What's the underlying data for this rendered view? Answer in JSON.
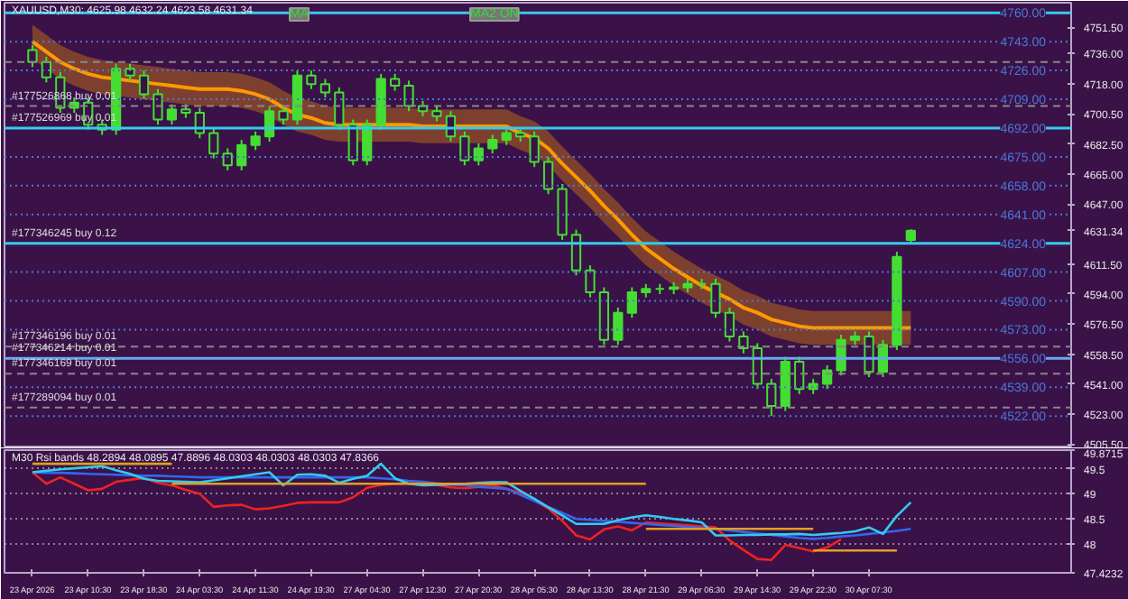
{
  "chart_data": [
    {
      "type": "candlestick",
      "title": "XAUUSD,M30: 4625.98 4632.24 4623.58 4631.34",
      "color": "#44dd33",
      "categories": [
        null,
        null,
        null,
        null,
        null,
        null,
        null,
        null,
        null,
        null,
        null,
        null,
        null,
        null,
        null,
        null,
        null,
        null,
        null,
        null,
        null,
        null,
        null,
        null,
        null,
        null,
        null,
        null,
        null,
        null,
        null,
        null,
        null,
        null,
        null,
        null,
        null,
        null,
        null,
        null,
        null,
        null,
        null,
        null,
        null,
        null,
        null,
        null,
        null,
        null,
        null,
        null,
        null,
        null,
        null,
        null,
        null,
        null,
        null,
        null,
        null,
        null,
        null,
        null
      ],
      "ohlc": [
        [
          4738,
          4741,
          4728,
          4731
        ],
        [
          4731,
          4734,
          4719,
          4722
        ],
        [
          4722,
          4725,
          4701,
          4704
        ],
        [
          4704,
          4710,
          4701,
          4707
        ],
        [
          4707,
          4710,
          4691,
          4694
        ],
        [
          4694,
          4697,
          4688,
          4691
        ],
        [
          4691,
          4730,
          4688,
          4727
        ],
        [
          4727,
          4730,
          4720,
          4723
        ],
        [
          4723,
          4726,
          4709,
          4712
        ],
        [
          4712,
          4715,
          4694,
          4697
        ],
        [
          4697,
          4706,
          4694,
          4703
        ],
        [
          4703,
          4706,
          4698,
          4701
        ],
        [
          4701,
          4704,
          4686,
          4689
        ],
        [
          4689,
          4692,
          4674,
          4677
        ],
        [
          4677,
          4680,
          4667,
          4670
        ],
        [
          4670,
          4685,
          4667,
          4682
        ],
        [
          4682,
          4690,
          4679,
          4687
        ],
        [
          4687,
          4705,
          4684,
          4702
        ],
        [
          4702,
          4705,
          4694,
          4697
        ],
        [
          4697,
          4726,
          4694,
          4723
        ],
        [
          4723,
          4726,
          4715,
          4718
        ],
        [
          4718,
          4721,
          4710,
          4713
        ],
        [
          4713,
          4716,
          4691,
          4694
        ],
        [
          4694,
          4697,
          4670,
          4673
        ],
        [
          4673,
          4697,
          4670,
          4694
        ],
        [
          4694,
          4724,
          4691,
          4721
        ],
        [
          4721,
          4724,
          4714,
          4717
        ],
        [
          4717,
          4720,
          4702,
          4705
        ],
        [
          4705,
          4708,
          4699,
          4702
        ],
        [
          4702,
          4705,
          4696,
          4699
        ],
        [
          4699,
          4702,
          4684,
          4687
        ],
        [
          4687,
          4690,
          4670,
          4673
        ],
        [
          4673,
          4683,
          4670,
          4680
        ],
        [
          4680,
          4688,
          4677,
          4685
        ],
        [
          4685,
          4692,
          4682,
          4689
        ],
        [
          4689,
          4692,
          4684,
          4687
        ],
        [
          4687,
          4690,
          4669,
          4672
        ],
        [
          4672,
          4675,
          4653,
          4656
        ],
        [
          4656,
          4659,
          4626,
          4629
        ],
        [
          4629,
          4632,
          4605,
          4608
        ],
        [
          4608,
          4611,
          4592,
          4595
        ],
        [
          4595,
          4598,
          4564,
          4567
        ],
        [
          4567,
          4586,
          4564,
          4583
        ],
        [
          4583,
          4598,
          4580,
          4595
        ],
        [
          4595,
          4600,
          4592,
          4597
        ],
        [
          4597,
          4600,
          4594,
          4597
        ],
        [
          4597,
          4601,
          4594,
          4598
        ],
        [
          4598,
          4603,
          4595,
          4600
        ],
        [
          4600,
          4603,
          4597,
          4600
        ],
        [
          4600,
          4603,
          4580,
          4583
        ],
        [
          4583,
          4586,
          4566,
          4569
        ],
        [
          4569,
          4572,
          4559,
          4562
        ],
        [
          4562,
          4565,
          4538,
          4541
        ],
        [
          4541,
          4544,
          4522,
          4528
        ],
        [
          4528,
          4557,
          4525,
          4554
        ],
        [
          4554,
          4557,
          4535,
          4538
        ],
        [
          4538,
          4544,
          4535,
          4541
        ],
        [
          4541,
          4552,
          4538,
          4549
        ],
        [
          4549,
          4570,
          4546,
          4567
        ],
        [
          4567,
          4572,
          4564,
          4569
        ],
        [
          4569,
          4572,
          4545,
          4548
        ],
        [
          4548,
          4567,
          4545,
          4564
        ],
        [
          4564,
          4619,
          4561,
          4616
        ],
        [
          4625.98,
          4632.24,
          4623.58,
          4631.34
        ]
      ],
      "series": [
        {
          "type": "line",
          "color": "#ff9900",
          "values": [
            4743,
            4737,
            4731,
            4727,
            4724,
            4722,
            4721,
            4720,
            4719,
            4718,
            4717,
            4716,
            4715,
            4715,
            4715,
            4714,
            4712,
            4709,
            4704,
            4700,
            4698,
            4695,
            4694,
            4694,
            4694,
            4694,
            4694,
            4694,
            4693,
            4693,
            4693,
            4693,
            4693,
            4693,
            4693,
            4689,
            4686,
            4680,
            4671,
            4663,
            4655,
            4646,
            4638,
            4629,
            4621,
            4615,
            4609,
            4604,
            4599,
            4595,
            4591,
            4586,
            4583,
            4579,
            4577,
            4575,
            4574,
            4574,
            4574,
            4574,
            4574,
            4574,
            4574,
            4574
          ],
          "lower": [
            4733,
            4727,
            4721,
            4717,
            4714,
            4712,
            4711,
            4710,
            4709,
            4708,
            4707,
            4706,
            4705,
            4705,
            4705,
            4704,
            4702,
            4699,
            4694,
            4690,
            4688,
            4685,
            4684,
            4684,
            4684,
            4684,
            4684,
            4684,
            4683,
            4683,
            4683,
            4683,
            4683,
            4683,
            4683,
            4679,
            4676,
            4670,
            4661,
            4653,
            4645,
            4636,
            4628,
            4619,
            4611,
            4605,
            4599,
            4594,
            4589,
            4585,
            4581,
            4576,
            4573,
            4569,
            4567,
            4565,
            4564,
            4564,
            4564,
            4564,
            4564,
            4564,
            4564,
            4564
          ],
          "upper": [
            4753,
            4747,
            4741,
            4737,
            4734,
            4732,
            4731,
            4730,
            4729,
            4728,
            4727,
            4726,
            4725,
            4725,
            4725,
            4724,
            4722,
            4719,
            4714,
            4710,
            4708,
            4705,
            4704,
            4704,
            4704,
            4704,
            4704,
            4704,
            4703,
            4703,
            4703,
            4703,
            4703,
            4703,
            4703,
            4699,
            4696,
            4690,
            4681,
            4673,
            4665,
            4656,
            4648,
            4639,
            4631,
            4625,
            4619,
            4614,
            4609,
            4605,
            4601,
            4596,
            4593,
            4589,
            4587,
            4585,
            4584,
            4584,
            4584,
            4584,
            4584,
            4584,
            4584,
            4584
          ]
        }
      ],
      "ref_lines": [
        {
          "axis": "y",
          "value": 4743,
          "label": "4743.00",
          "color": "#4a78d8",
          "line_style": "dotted"
        },
        {
          "axis": "y",
          "value": 4726,
          "label": "4726.00",
          "color": "#4a78d8",
          "line_style": "dotted"
        },
        {
          "axis": "y",
          "value": 4709,
          "label": "4709.00",
          "color": "#4a78d8",
          "line_style": "dotted"
        },
        {
          "axis": "y",
          "value": 4675,
          "label": "4675.00",
          "color": "#4a78d8",
          "line_style": "dotted"
        },
        {
          "axis": "y",
          "value": 4658,
          "label": "4658.00",
          "color": "#4a78d8",
          "line_style": "dotted"
        },
        {
          "axis": "y",
          "value": 4641,
          "label": "4641.00",
          "color": "#4a78d8",
          "line_style": "dotted"
        },
        {
          "axis": "y",
          "value": 4607,
          "label": "4607.00",
          "color": "#4a78d8",
          "line_style": "dotted"
        },
        {
          "axis": "y",
          "value": 4590,
          "label": "4590.00",
          "color": "#4a78d8",
          "line_style": "dotted"
        },
        {
          "axis": "y",
          "value": 4573,
          "label": "4573.00",
          "color": "#4a78d8",
          "line_style": "dotted"
        },
        {
          "axis": "y",
          "value": 4539,
          "label": "4539.00",
          "color": "#4a78d8",
          "line_style": "dotted"
        },
        {
          "axis": "y",
          "value": 4522,
          "label": "4522.00",
          "color": "#4a78d8",
          "line_style": "dotted"
        },
        {
          "axis": "y",
          "value": 4760,
          "label": null,
          "color": "#33ccee",
          "line_style": "solid"
        },
        {
          "axis": "y",
          "value": 4731,
          "label": null,
          "color": "#888888",
          "line_style": "dashed"
        },
        {
          "axis": "y",
          "value": 4705,
          "label": "#177526868 buy 0.01",
          "color": "#888888",
          "line_style": "dashed"
        },
        {
          "axis": "y",
          "value": 4692,
          "label": "#177526969 buy 0.01",
          "color": "#33ccee",
          "line_style": "solid"
        },
        {
          "axis": "y",
          "value": 4624,
          "label": "#177346245 buy 0.12",
          "color": "#33ccee",
          "line_style": "solid"
        },
        {
          "axis": "y",
          "value": 4563,
          "label": "#177346196 buy 0.01",
          "color": "#888888",
          "line_style": "dashed"
        },
        {
          "axis": "y",
          "value": 4556,
          "label": "#177346214 buy 0.01",
          "color": "#66aaee",
          "line_style": "solid"
        },
        {
          "axis": "y",
          "value": 4547,
          "label": "#177346169 buy 0.01",
          "color": "#888888",
          "line_style": "dashed"
        },
        {
          "axis": "y",
          "value": 4527,
          "label": "#177289094 buy 0.01",
          "color": "#888888",
          "line_style": "dashed"
        }
      ],
      "annotations": [
        "MA",
        "MA2 ON",
        {
          "text": "4760.00",
          "y": 4760
        },
        {
          "text": "4692.00",
          "y": 4692
        },
        {
          "text": "4624.00",
          "y": 4624
        },
        {
          "text": "4556.00",
          "y": 4556
        }
      ],
      "ylim": [
        4504,
        4766
      ],
      "yticks": [
        {
          "value": 4751.5,
          "label": "4751.50"
        },
        {
          "value": 4736,
          "label": "4736.00"
        },
        {
          "value": 4718,
          "label": "4718.00"
        },
        {
          "value": 4700.5,
          "label": "4700.50"
        },
        {
          "value": 4682.5,
          "label": "4682.50"
        },
        {
          "value": 4665,
          "label": "4665.00"
        },
        {
          "value": 4647,
          "label": "4647.00"
        },
        {
          "value": 4631.34,
          "label": "4631.34"
        },
        {
          "value": 4611.5,
          "label": "4611.50"
        },
        {
          "value": 4594,
          "label": "4594.00"
        },
        {
          "value": 4576.5,
          "label": "4576.50"
        },
        {
          "value": 4558.5,
          "label": "4558.50"
        },
        {
          "value": 4541,
          "label": "4541.00"
        },
        {
          "value": 4523,
          "label": "4523.00"
        },
        {
          "value": 4505.5,
          "label": "4505.50"
        }
      ],
      "tick_labels": "y"
    },
    {
      "type": "line",
      "title": "M30 Rsi bands 48.2894 48.0895 47.8896 48.0303 48.0303 48.0303 47.8366",
      "categories": [
        "23 Apr 2026",
        null,
        null,
        null,
        "23 Apr 10:30",
        null,
        null,
        null,
        "23 Apr 18:30",
        null,
        null,
        null,
        "24 Apr 03:30",
        null,
        null,
        null,
        "24 Apr 11:30",
        null,
        null,
        null,
        "24 Apr 19:30",
        null,
        null,
        null,
        "27 Apr 04:30",
        null,
        null,
        null,
        "27 Apr 12:30",
        null,
        null,
        null,
        "27 Apr 20:30",
        null,
        null,
        null,
        "28 Apr 05:30",
        null,
        null,
        null,
        "28 Apr 13:30",
        null,
        null,
        null,
        "28 Apr 21:30",
        null,
        null,
        null,
        "29 Apr 06:30",
        null,
        null,
        null,
        "29 Apr 14:30",
        null,
        null,
        null,
        "29 Apr 22:30",
        null,
        null,
        null,
        "30 Apr 07:30",
        null,
        null,
        null
      ],
      "series": [
        {
          "color": "#ee2222",
          "values": [
            49.43,
            49.2,
            49.33,
            49.2,
            49.07,
            49.1,
            49.24,
            49.28,
            49.32,
            49.22,
            49.17,
            49.08,
            49.0,
            48.74,
            48.77,
            48.78,
            48.69,
            48.71,
            48.76,
            48.82,
            48.83,
            48.83,
            48.83,
            48.93,
            49.12,
            49.18,
            49.2,
            49.21,
            49.23,
            49.18,
            49.13,
            49.11,
            49.14,
            49.17,
            49.1,
            49.02,
            48.87,
            48.71,
            48.46,
            48.17,
            48.09,
            48.29,
            48.35,
            48.27,
            48.43,
            48.41,
            48.39,
            48.37,
            48.35,
            48.33,
            48.07,
            47.88,
            47.7,
            47.68,
            47.98,
            47.92,
            47.85,
            47.93,
            48.09,
            null,
            null,
            null,
            null,
            null
          ]
        },
        {
          "color": "#3366ee",
          "values": [
            49.43,
            49.42,
            49.42,
            49.41,
            49.4,
            49.39,
            49.38,
            49.37,
            49.36,
            49.36,
            49.35,
            49.34,
            49.33,
            49.33,
            49.33,
            49.33,
            49.33,
            49.33,
            49.33,
            49.33,
            49.33,
            49.33,
            49.33,
            49.33,
            49.33,
            49.31,
            49.29,
            49.26,
            49.24,
            49.21,
            49.19,
            49.17,
            49.14,
            49.12,
            49.1,
            48.98,
            48.86,
            48.74,
            48.62,
            48.5,
            48.48,
            48.46,
            48.44,
            48.42,
            48.4,
            48.38,
            48.36,
            48.34,
            48.32,
            48.3,
            48.27,
            48.24,
            48.21,
            48.18,
            48.15,
            48.12,
            48.1,
            48.12,
            48.15,
            48.17,
            48.2,
            48.23,
            48.26,
            48.3
          ]
        },
        {
          "color": "#33ccee",
          "values": [
            49.43,
            49.46,
            49.49,
            49.51,
            49.53,
            49.55,
            49.47,
            49.4,
            49.3,
            49.26,
            49.25,
            49.24,
            49.23,
            49.27,
            49.31,
            49.35,
            49.39,
            49.43,
            49.17,
            49.38,
            49.39,
            49.36,
            49.22,
            49.3,
            49.36,
            49.6,
            49.31,
            49.2,
            49.17,
            49.18,
            49.19,
            49.2,
            49.22,
            49.23,
            49.23,
            49.06,
            48.9,
            48.73,
            48.57,
            48.4,
            48.4,
            48.4,
            48.47,
            48.53,
            48.57,
            48.54,
            48.5,
            48.47,
            48.43,
            48.17,
            48.17,
            48.18,
            48.18,
            48.19,
            48.19,
            48.2,
            48.18,
            48.2,
            48.22,
            48.25,
            48.33,
            48.2,
            48.56,
            48.83
          ]
        },
        {
          "color": "#e0a020",
          "values": [
            49.6,
            49.6,
            49.6,
            49.6,
            49.6,
            49.6,
            49.6,
            49.6,
            49.6,
            49.6,
            49.6,
            null,
            null,
            null,
            null,
            null,
            null,
            null,
            null,
            null,
            null,
            null,
            null,
            null,
            null,
            null,
            null,
            null,
            null,
            null,
            null,
            null,
            null,
            null,
            null,
            null,
            null,
            null,
            null,
            null,
            null,
            null,
            null,
            null,
            null,
            null,
            null,
            null,
            null,
            null,
            null,
            null,
            null,
            null,
            null,
            null,
            null,
            null,
            null,
            null,
            null,
            null,
            null,
            null
          ]
        },
        {
          "color": "#e0a020",
          "values": [
            null,
            null,
            null,
            null,
            null,
            null,
            null,
            null,
            null,
            null,
            49.2,
            49.2,
            49.2,
            49.2,
            49.2,
            49.2,
            49.2,
            49.2,
            49.2,
            49.2,
            49.2,
            49.2,
            49.2,
            49.2,
            49.2,
            49.2,
            49.2,
            49.2,
            49.2,
            49.2,
            49.2,
            49.2,
            49.2,
            49.2,
            49.2,
            49.2,
            49.2,
            49.2,
            49.2,
            49.2,
            49.2,
            49.2,
            49.2,
            49.2,
            49.2,
            null,
            null,
            null,
            null,
            null,
            null,
            null,
            null,
            null,
            null,
            null,
            null,
            null,
            null,
            null,
            null,
            null,
            null,
            null
          ]
        },
        {
          "color": "#e0a020",
          "values": [
            null,
            null,
            null,
            null,
            null,
            null,
            null,
            null,
            null,
            null,
            null,
            null,
            null,
            null,
            null,
            null,
            null,
            null,
            null,
            null,
            null,
            null,
            null,
            null,
            null,
            null,
            null,
            null,
            null,
            null,
            null,
            null,
            null,
            null,
            null,
            null,
            null,
            null,
            null,
            null,
            null,
            null,
            null,
            null,
            48.3,
            48.3,
            48.3,
            48.3,
            48.3,
            48.3,
            48.3,
            48.3,
            48.3,
            48.3,
            48.3,
            48.3,
            48.3,
            null,
            null,
            null,
            null,
            null,
            null,
            null
          ]
        },
        {
          "color": "#e0a020",
          "values": [
            null,
            null,
            null,
            null,
            null,
            null,
            null,
            null,
            null,
            null,
            null,
            null,
            null,
            null,
            null,
            null,
            null,
            null,
            null,
            null,
            null,
            null,
            null,
            null,
            null,
            null,
            null,
            null,
            null,
            null,
            null,
            null,
            null,
            null,
            null,
            null,
            null,
            null,
            null,
            null,
            null,
            null,
            null,
            null,
            null,
            null,
            null,
            null,
            null,
            null,
            null,
            null,
            null,
            null,
            null,
            null,
            47.87,
            47.87,
            47.87,
            47.87,
            47.87,
            47.87,
            47.87,
            null
          ]
        }
      ],
      "ylim": [
        47.4232,
        49.8715
      ],
      "yticks": [
        49.8715,
        49.5,
        49,
        48.5,
        48,
        47.4232
      ],
      "grid": "y"
    }
  ]
}
